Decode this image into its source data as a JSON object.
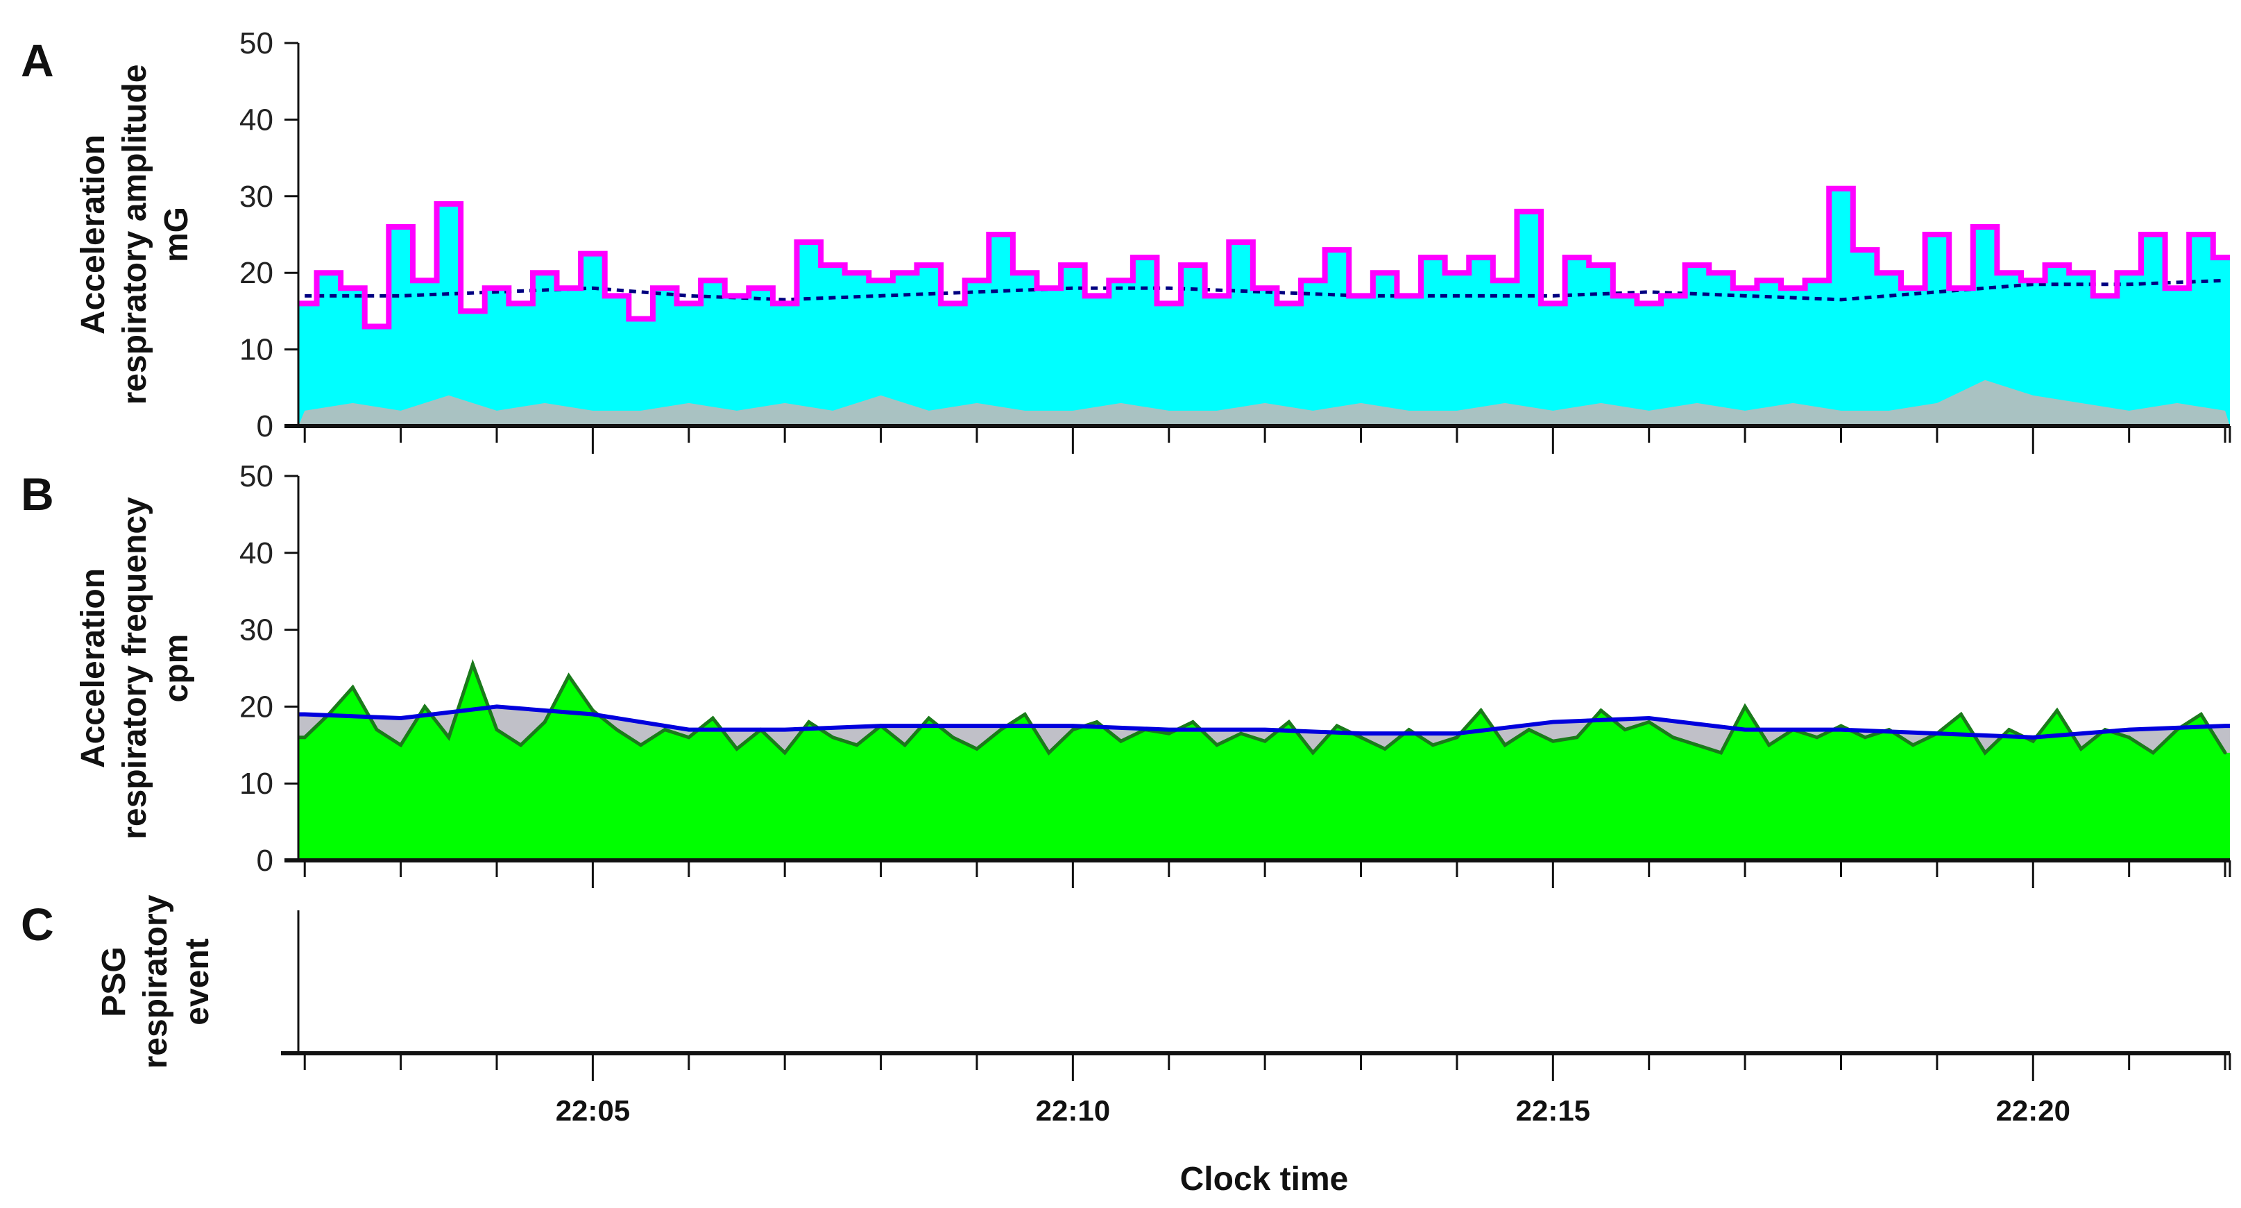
{
  "chart_data": [
    {
      "panel": "A",
      "type": "area",
      "ylabel": [
        "Acceleration",
        "respiratory amplitude",
        "mG"
      ],
      "ylim": [
        0,
        50
      ],
      "yticks": [
        0,
        10,
        20,
        30,
        40,
        50
      ],
      "xlim": [
        "22:01:56",
        "22:22:03"
      ],
      "colors": {
        "amplitude": "#ff00ff",
        "fill": "#00ffff",
        "median": "#000080",
        "noise": "#bbbbbb"
      },
      "amplitude_step": {
        "x_start": "22:02:00",
        "x_step_seconds": 15,
        "values": [
          16,
          20,
          18,
          13,
          26,
          19,
          29,
          15,
          18,
          16,
          20,
          18,
          22.5,
          17,
          14,
          18,
          16,
          19,
          17,
          18,
          16,
          24,
          21,
          20,
          19,
          20,
          21,
          16,
          19,
          25,
          20,
          18,
          21,
          17,
          19,
          22,
          16,
          21,
          17,
          24,
          18,
          16,
          19,
          23,
          17,
          20,
          17,
          22,
          20,
          22,
          19,
          28,
          16,
          22,
          21,
          17,
          16,
          17,
          21,
          20,
          18,
          19,
          18,
          19,
          31,
          23,
          20,
          18,
          25,
          18,
          26,
          20,
          19,
          21,
          20,
          17,
          20,
          25,
          18,
          25,
          22
        ]
      },
      "median_line": {
        "x_start": "22:02:00",
        "x_step_seconds": 60,
        "values": [
          17,
          17,
          17.5,
          18,
          17,
          16.5,
          17,
          17.5,
          18,
          18,
          17.5,
          17,
          17,
          17,
          17.5,
          17,
          16.5,
          17.5,
          18.5,
          18.5,
          19
        ]
      },
      "noise_floor": {
        "x_start": "22:02:00",
        "x_step_seconds": 30,
        "values": [
          2,
          3,
          2,
          4,
          2,
          3,
          2,
          2,
          3,
          2,
          3,
          2,
          4,
          2,
          3,
          2,
          2,
          3,
          2,
          2,
          3,
          2,
          3,
          2,
          2,
          3,
          2,
          3,
          2,
          3,
          2,
          3,
          2,
          2,
          3,
          6,
          4,
          3,
          2,
          3,
          2
        ]
      }
    },
    {
      "panel": "B",
      "type": "area",
      "ylabel": [
        "Acceleration",
        "respiratory frequency",
        "cpm"
      ],
      "ylim": [
        0,
        50
      ],
      "yticks": [
        0,
        10,
        20,
        30,
        40,
        50
      ],
      "xlim": [
        "22:01:56",
        "22:22:03"
      ],
      "colors": {
        "frequency": "#00ff00",
        "frequency_outline": "#1a7a1a",
        "baseline": "#0000dd",
        "gap": "#c0c0c8"
      },
      "frequency": {
        "x_start": "22:02:00",
        "x_step_seconds": 15,
        "values": [
          16,
          19,
          22.5,
          17,
          15,
          20,
          16,
          25.5,
          17,
          15,
          18,
          24,
          19.5,
          17,
          15,
          17,
          16,
          18.5,
          14.5,
          17,
          14,
          18,
          16,
          15,
          17.5,
          15,
          18.5,
          16,
          14.5,
          17,
          19,
          14,
          17,
          18,
          15.5,
          17,
          16.5,
          18,
          15,
          16.5,
          15.5,
          18,
          14,
          17.5,
          16,
          14.5,
          17,
          15,
          16,
          19.5,
          15,
          17,
          15.5,
          16,
          19.5,
          17,
          18,
          16,
          15,
          14,
          20,
          15,
          17,
          16,
          17.5,
          16,
          17,
          15,
          16.5,
          19,
          14,
          17,
          15.5,
          19.5,
          14.5,
          17,
          16,
          14,
          17,
          19,
          14
        ]
      },
      "baseline_line": {
        "x_start": "22:02:00",
        "x_step_seconds": 60,
        "values": [
          19,
          18.5,
          20,
          19,
          17,
          17,
          17.5,
          17.5,
          17.5,
          17,
          17,
          16.5,
          16.5,
          18,
          18.5,
          17,
          17,
          16.5,
          16,
          17,
          17.5
        ]
      }
    },
    {
      "panel": "C",
      "type": "line",
      "ylabel": [
        "PSG",
        "respiratory",
        "event"
      ],
      "xlim": [
        "22:01:56",
        "22:22:03"
      ],
      "events": []
    }
  ],
  "x_axis": {
    "label": "Clock time",
    "major_ticks": [
      "22:05",
      "22:10",
      "22:15",
      "22:20"
    ],
    "minor_tick_interval_minutes": 1
  }
}
